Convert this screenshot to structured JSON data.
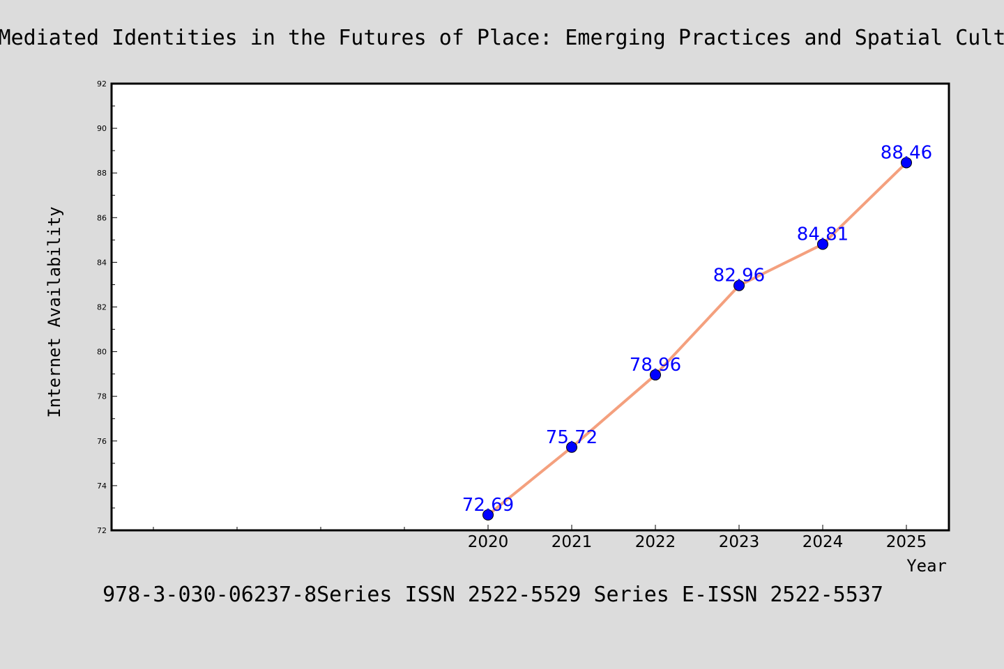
{
  "chart_data": {
    "type": "line",
    "title": "Mediated Identities in the Futures of Place: Emerging Practices and Spatial Cult",
    "xlabel": "Year",
    "ylabel": "Internet Availability",
    "footer": "978-3-030-06237-8Series ISSN 2522-5529 Series E-ISSN 2522-5537",
    "x": [
      "2020",
      "2021",
      "2022",
      "2023",
      "2024",
      "2025"
    ],
    "values": [
      72.69,
      75.72,
      78.96,
      82.96,
      84.81,
      88.46
    ],
    "data_labels": [
      "72.69",
      "75.72",
      "78.96",
      "82.96",
      "84.81",
      "88.46"
    ],
    "ylim": [
      72,
      92
    ],
    "yticks": [
      72,
      74,
      76,
      78,
      80,
      82,
      84,
      86,
      88,
      90,
      92
    ],
    "ytick_labels": [
      "72",
      "74",
      "76",
      "78",
      "80",
      "82",
      "84",
      "86",
      "88",
      "90",
      "92"
    ],
    "grid": false,
    "line_color": "#f4a07e",
    "marker_color": "#0000ff",
    "label_color": "#0000ff",
    "background_color": "#dcdcdc",
    "plot_background": "#ffffff"
  }
}
